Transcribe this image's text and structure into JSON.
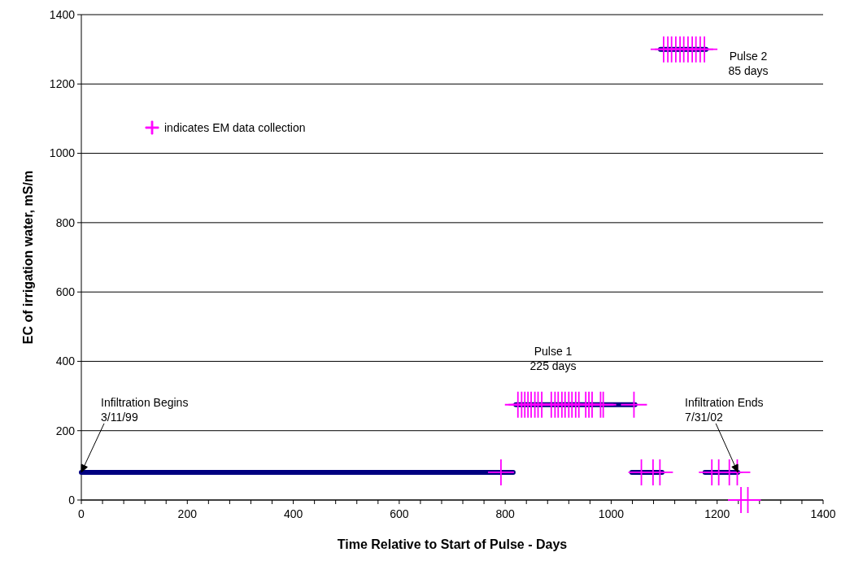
{
  "chart_data": {
    "type": "line",
    "xlabel": "Time Relative to Start of Pulse - Days",
    "ylabel": "EC of irrigation water, mS/m",
    "xlim": [
      0,
      1400
    ],
    "ylim": [
      0,
      1400
    ],
    "xticks": [
      0,
      {
        "value": 40,
        "label": null
      },
      {
        "value": 80,
        "label": null
      },
      {
        "value": 120,
        "label": null
      },
      {
        "value": 160,
        "label": null
      },
      200,
      {
        "value": 240,
        "label": null
      },
      {
        "value": 280,
        "label": null
      },
      {
        "value": 320,
        "label": null
      },
      {
        "value": 360,
        "label": null
      },
      400,
      {
        "value": 440,
        "label": null
      },
      {
        "value": 480,
        "label": null
      },
      {
        "value": 520,
        "label": null
      },
      {
        "value": 560,
        "label": null
      },
      600,
      {
        "value": 640,
        "label": null
      },
      {
        "value": 680,
        "label": null
      },
      {
        "value": 720,
        "label": null
      },
      {
        "value": 760,
        "label": null
      },
      800,
      {
        "value": 840,
        "label": null
      },
      {
        "value": 880,
        "label": null
      },
      {
        "value": 920,
        "label": null
      },
      {
        "value": 960,
        "label": null
      },
      1000,
      {
        "value": 1040,
        "label": null
      },
      {
        "value": 1080,
        "label": null
      },
      {
        "value": 1120,
        "label": null
      },
      {
        "value": 1160,
        "label": null
      },
      1200,
      {
        "value": 1240,
        "label": null
      },
      {
        "value": 1280,
        "label": null
      },
      {
        "value": 1320,
        "label": null
      },
      {
        "value": 1360,
        "label": null
      },
      1400
    ],
    "yticks": [
      0,
      200,
      400,
      600,
      800,
      1000,
      1200,
      1400
    ],
    "grid": "y",
    "legend": "top left",
    "series": [
      {
        "color": "#000080",
        "x": [
          0,
          815
        ],
        "values": [
          80,
          80
        ]
      },
      {
        "color": "#000080",
        "x": [
          820,
          1045
        ],
        "values": [
          275,
          275
        ]
      },
      {
        "color": "#000080",
        "x": [
          1039,
          1096
        ],
        "values": [
          80,
          80
        ]
      },
      {
        "color": "#000080",
        "x": [
          1177,
          1239
        ],
        "values": [
          80,
          80
        ]
      },
      {
        "color": "#000080",
        "x": [
          1093,
          1179
        ],
        "values": [
          1300,
          1300
        ]
      },
      {
        "type": "scatter",
        "name": "indicates EM data collection",
        "color": "#ff00ff",
        "marker": "cross",
        "x": [
          792,
          824,
          831,
          837,
          843,
          849,
          856,
          862,
          869,
          887,
          894,
          900,
          907,
          913,
          920,
          926,
          933,
          939,
          952,
          958,
          964,
          980,
          985,
          1043,
          1057,
          1079,
          1092,
          1190,
          1203,
          1223,
          1238,
          1245,
          1258,
          1099,
          1107,
          1114,
          1122,
          1130,
          1137,
          1145,
          1153,
          1160,
          1168,
          1176
        ],
        "values": [
          80,
          275,
          275,
          275,
          275,
          275,
          275,
          275,
          275,
          275,
          275,
          275,
          275,
          275,
          275,
          275,
          275,
          275,
          275,
          275,
          275,
          275,
          275,
          275,
          80,
          80,
          80,
          80,
          80,
          80,
          80,
          0,
          0,
          1300,
          1300,
          1300,
          1300,
          1300,
          1300,
          1300,
          1300,
          1300,
          1300,
          1300
        ]
      }
    ],
    "annotations": [
      {
        "text": "Infiltration Begins\n3/11/99",
        "x": 0,
        "y": 80
      },
      {
        "text": "Infiltration Ends\n7/31/02",
        "x": 1239,
        "y": 80
      },
      "Pulse 1\n225 days",
      "Pulse 2\n85 days"
    ]
  }
}
